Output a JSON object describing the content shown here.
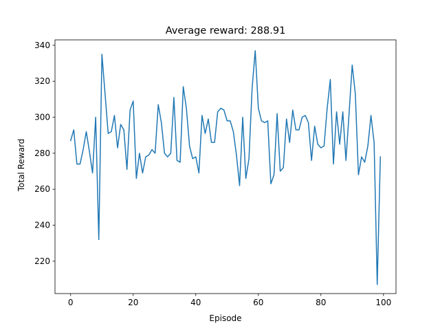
{
  "chart_data": {
    "type": "line",
    "title": "Average reward: 288.91",
    "xlabel": "Episode",
    "ylabel": "Total Reward",
    "xlim": [
      -5,
      104
    ],
    "ylim": [
      202,
      343
    ],
    "x_ticks": [
      0,
      20,
      40,
      60,
      80,
      100
    ],
    "y_ticks": [
      220,
      240,
      260,
      280,
      300,
      320,
      340
    ],
    "grid": false,
    "line_color": "#1f77b4",
    "series": [
      {
        "x": [
          0,
          1,
          2,
          3,
          4,
          5,
          6,
          7,
          8,
          9,
          10,
          11,
          12,
          13,
          14,
          15,
          16,
          17,
          18,
          19,
          20,
          21,
          22,
          23,
          24,
          25,
          26,
          27,
          28,
          29,
          30,
          31,
          32,
          33,
          34,
          35,
          36,
          37,
          38,
          39,
          40,
          41,
          42,
          43,
          44,
          45,
          46,
          47,
          48,
          49,
          50,
          51,
          52,
          53,
          54,
          55,
          56,
          57,
          58,
          59,
          60,
          61,
          62,
          63,
          64,
          65,
          66,
          67,
          68,
          69,
          70,
          71,
          72,
          73,
          74,
          75,
          76,
          77,
          78,
          79,
          80,
          81,
          82,
          83,
          84,
          85,
          86,
          87,
          88,
          89,
          90,
          91,
          92,
          93,
          94,
          95,
          96,
          97,
          98,
          99
        ],
        "values": [
          287,
          293,
          274,
          274,
          282,
          292,
          281,
          269,
          300,
          232,
          335,
          313,
          291,
          292,
          301,
          283,
          296,
          293,
          271,
          304,
          309,
          266,
          280,
          269,
          278,
          279,
          282,
          280,
          307,
          297,
          280,
          278,
          280,
          311,
          276,
          275,
          317,
          305,
          284,
          277,
          278,
          269,
          301,
          291,
          299,
          286,
          286,
          303,
          305,
          304,
          298,
          298,
          292,
          279,
          262,
          300,
          266,
          277,
          316,
          337,
          305,
          298,
          297,
          298,
          263,
          268,
          302,
          270,
          272,
          299,
          286,
          304,
          293,
          293,
          300,
          301,
          297,
          276,
          295,
          285,
          283,
          284,
          305,
          321,
          274,
          303,
          285,
          303,
          276,
          302,
          329,
          313,
          268,
          278,
          275,
          284,
          301,
          286,
          207,
          278
        ]
      }
    ]
  }
}
